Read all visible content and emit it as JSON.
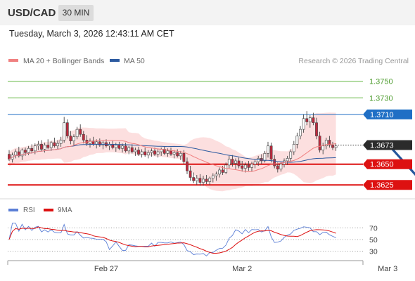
{
  "header": {
    "symbol": "USD/CAD",
    "timeframe": "30 MIN"
  },
  "datetime": "Tuesday, March 3, 2026 12:43:11 AM CET",
  "chart_data": {
    "type": "candlestick",
    "legend": [
      {
        "name": "MA 20 + Bollinger Bands",
        "color": "#f08080"
      },
      {
        "name": "MA 50",
        "color": "#2c5aa0"
      }
    ],
    "copyright": "Research © 2026 Trading Central",
    "ylim": [
      1.3615,
      1.3765
    ],
    "levels": [
      {
        "value": 1.375,
        "label": "1.3750",
        "color": "#66b845",
        "role": "resistance"
      },
      {
        "value": 1.373,
        "label": "1.3730",
        "color": "#66b845",
        "role": "resistance"
      },
      {
        "value": 1.371,
        "label": "1.3710",
        "color": "#1f6fc5",
        "role": "pivot"
      },
      {
        "value": 1.365,
        "label": "1.3650",
        "color": "#dd1111",
        "role": "support"
      },
      {
        "value": 1.3625,
        "label": "1.3625",
        "color": "#dd1111",
        "role": "support"
      }
    ],
    "last_price": {
      "value": 1.3673,
      "label": "1.3673"
    },
    "forecast_arrow": {
      "from_index": 118,
      "from": 1.367,
      "to_index": 128,
      "to": 1.3627
    },
    "x_ticks": [
      {
        "index": 30,
        "label": "Feb 27"
      },
      {
        "index": 72,
        "label": "Mar 2"
      },
      {
        "index": 117,
        "label": "Mar 3"
      }
    ],
    "rsi": {
      "legend": [
        {
          "name": "RSI",
          "color": "#5b7fd6"
        },
        {
          "name": "9MA",
          "color": "#dd1111"
        }
      ],
      "ylim": [
        20,
        80
      ],
      "ticks": [
        70,
        50,
        30
      ]
    },
    "candles": [
      [
        1.3662,
        1.3667,
        1.3654,
        1.3656
      ],
      [
        1.3656,
        1.3664,
        1.3652,
        1.3661
      ],
      [
        1.3661,
        1.3668,
        1.3657,
        1.3665
      ],
      [
        1.3665,
        1.3671,
        1.3658,
        1.366
      ],
      [
        1.366,
        1.3669,
        1.3655,
        1.3667
      ],
      [
        1.3667,
        1.367,
        1.366,
        1.3664
      ],
      [
        1.3664,
        1.3672,
        1.3661,
        1.3669
      ],
      [
        1.3669,
        1.3674,
        1.3663,
        1.3666
      ],
      [
        1.3666,
        1.3675,
        1.3662,
        1.3672
      ],
      [
        1.3672,
        1.3678,
        1.3667,
        1.3674
      ],
      [
        1.3674,
        1.3679,
        1.3666,
        1.3668
      ],
      [
        1.3668,
        1.3676,
        1.3664,
        1.3673
      ],
      [
        1.3673,
        1.368,
        1.3668,
        1.367
      ],
      [
        1.367,
        1.3678,
        1.3666,
        1.3676
      ],
      [
        1.3676,
        1.3682,
        1.367,
        1.3672
      ],
      [
        1.3672,
        1.3679,
        1.3668,
        1.3675
      ],
      [
        1.3675,
        1.3683,
        1.3671,
        1.3679
      ],
      [
        1.3679,
        1.3707,
        1.3676,
        1.37
      ],
      [
        1.37,
        1.3704,
        1.3681,
        1.3684
      ],
      [
        1.3684,
        1.369,
        1.3674,
        1.3678
      ],
      [
        1.3678,
        1.3686,
        1.3672,
        1.3683
      ],
      [
        1.3683,
        1.3695,
        1.368,
        1.3692
      ],
      [
        1.3692,
        1.3698,
        1.3683,
        1.3686
      ],
      [
        1.3686,
        1.369,
        1.3675,
        1.3679
      ],
      [
        1.3679,
        1.3685,
        1.3672,
        1.3675
      ],
      [
        1.3675,
        1.3681,
        1.367,
        1.3678
      ],
      [
        1.3678,
        1.3683,
        1.3672,
        1.3674
      ],
      [
        1.3674,
        1.368,
        1.3669,
        1.3677
      ],
      [
        1.3677,
        1.3681,
        1.3671,
        1.3673
      ],
      [
        1.3673,
        1.3679,
        1.3668,
        1.3676
      ],
      [
        1.3676,
        1.368,
        1.367,
        1.3672
      ],
      [
        1.3672,
        1.3677,
        1.3667,
        1.3674
      ],
      [
        1.3674,
        1.3678,
        1.3668,
        1.367
      ],
      [
        1.367,
        1.3676,
        1.3665,
        1.3673
      ],
      [
        1.3673,
        1.3677,
        1.3667,
        1.3669
      ],
      [
        1.3669,
        1.3675,
        1.3664,
        1.3672
      ],
      [
        1.3672,
        1.3676,
        1.3664,
        1.3666
      ],
      [
        1.3666,
        1.3672,
        1.3662,
        1.367
      ],
      [
        1.367,
        1.3674,
        1.3663,
        1.3665
      ],
      [
        1.3665,
        1.367,
        1.366,
        1.3667
      ],
      [
        1.3667,
        1.3671,
        1.366,
        1.3662
      ],
      [
        1.3662,
        1.3668,
        1.3658,
        1.3665
      ],
      [
        1.3665,
        1.367,
        1.3659,
        1.3661
      ],
      [
        1.3661,
        1.3667,
        1.3657,
        1.3664
      ],
      [
        1.3664,
        1.3669,
        1.3659,
        1.3666
      ],
      [
        1.3666,
        1.367,
        1.366,
        1.3662
      ],
      [
        1.3662,
        1.3668,
        1.3658,
        1.3665
      ],
      [
        1.3665,
        1.367,
        1.366,
        1.3668
      ],
      [
        1.3668,
        1.3671,
        1.3661,
        1.3663
      ],
      [
        1.3663,
        1.3669,
        1.3659,
        1.3666
      ],
      [
        1.3666,
        1.367,
        1.366,
        1.3662
      ],
      [
        1.3662,
        1.3667,
        1.3657,
        1.3664
      ],
      [
        1.3664,
        1.3668,
        1.3658,
        1.366
      ],
      [
        1.366,
        1.3666,
        1.3655,
        1.3663
      ],
      [
        1.3663,
        1.3667,
        1.365,
        1.3653
      ],
      [
        1.3653,
        1.3658,
        1.3638,
        1.3642
      ],
      [
        1.3642,
        1.3648,
        1.363,
        1.3634
      ],
      [
        1.3634,
        1.364,
        1.3627,
        1.363
      ],
      [
        1.363,
        1.3637,
        1.3625,
        1.3633
      ],
      [
        1.3633,
        1.3638,
        1.3624,
        1.3628
      ],
      [
        1.3628,
        1.3636,
        1.3624,
        1.3632
      ],
      [
        1.3632,
        1.3637,
        1.3626,
        1.3629
      ],
      [
        1.3629,
        1.3635,
        1.3625,
        1.3633
      ],
      [
        1.3633,
        1.3639,
        1.3628,
        1.3636
      ],
      [
        1.3636,
        1.3641,
        1.363,
        1.3638
      ],
      [
        1.3638,
        1.3646,
        1.3634,
        1.3643
      ],
      [
        1.3643,
        1.3648,
        1.3637,
        1.364
      ],
      [
        1.364,
        1.3652,
        1.3638,
        1.3649
      ],
      [
        1.3649,
        1.366,
        1.3645,
        1.3656
      ],
      [
        1.3656,
        1.3661,
        1.3647,
        1.3651
      ],
      [
        1.3651,
        1.3657,
        1.3644,
        1.3654
      ],
      [
        1.3654,
        1.3658,
        1.3645,
        1.3648
      ],
      [
        1.3648,
        1.3654,
        1.3641,
        1.3645
      ],
      [
        1.3645,
        1.3652,
        1.364,
        1.3649
      ],
      [
        1.3649,
        1.3654,
        1.3642,
        1.3646
      ],
      [
        1.3646,
        1.3653,
        1.3641,
        1.365
      ],
      [
        1.365,
        1.3656,
        1.3645,
        1.3653
      ],
      [
        1.3653,
        1.366,
        1.3648,
        1.3657
      ],
      [
        1.3657,
        1.3662,
        1.365,
        1.3654
      ],
      [
        1.3654,
        1.3666,
        1.3652,
        1.3663
      ],
      [
        1.3663,
        1.3677,
        1.3658,
        1.3672
      ],
      [
        1.3672,
        1.3676,
        1.3652,
        1.3656
      ],
      [
        1.3656,
        1.3661,
        1.3645,
        1.3648
      ],
      [
        1.3648,
        1.3652,
        1.364,
        1.3644
      ],
      [
        1.3644,
        1.3653,
        1.3641,
        1.365
      ],
      [
        1.365,
        1.3657,
        1.3646,
        1.3654
      ],
      [
        1.3654,
        1.366,
        1.3649,
        1.3657
      ],
      [
        1.3657,
        1.3668,
        1.3653,
        1.3665
      ],
      [
        1.3665,
        1.3678,
        1.3661,
        1.3674
      ],
      [
        1.3674,
        1.3688,
        1.3669,
        1.3684
      ],
      [
        1.3684,
        1.3696,
        1.368,
        1.3692
      ],
      [
        1.3692,
        1.371,
        1.3688,
        1.3705
      ],
      [
        1.3705,
        1.3714,
        1.3697,
        1.3701
      ],
      [
        1.3701,
        1.3709,
        1.3694,
        1.3706
      ],
      [
        1.3706,
        1.3712,
        1.3697,
        1.37
      ],
      [
        1.37,
        1.3706,
        1.368,
        1.3684
      ],
      [
        1.3684,
        1.3689,
        1.3664,
        1.3667
      ],
      [
        1.3667,
        1.3676,
        1.3662,
        1.3672
      ],
      [
        1.3672,
        1.3682,
        1.3668,
        1.3679
      ],
      [
        1.3679,
        1.3684,
        1.367,
        1.3673
      ],
      [
        1.3673,
        1.3677,
        1.3667,
        1.367
      ],
      [
        1.367,
        1.3675,
        1.3666,
        1.3672
      ]
    ]
  }
}
